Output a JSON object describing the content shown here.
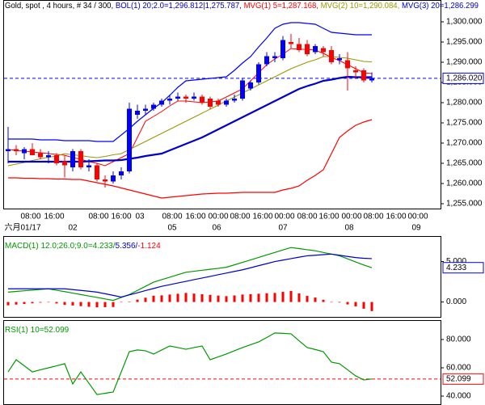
{
  "chart_data": [
    {
      "type": "candlestick",
      "title": "Gold, spot , 4 hours, # 34 / 300,",
      "up_color": "#0000ff",
      "down_color": "#ff0000",
      "open": [
        1268,
        1268.5,
        1267.5,
        1268.5,
        1267.5,
        1266.5,
        1267,
        1265.5,
        1264,
        1268,
        1264,
        1264.5,
        1261,
        1260.5,
        1262,
        1263,
        1277,
        1278,
        1278.5,
        1279.5,
        1280.5,
        1281,
        1281.5,
        1281,
        1281.5,
        1281,
        1280.5,
        1279.5,
        1280.5,
        1281,
        1283.5,
        1285,
        1289.5,
        1291,
        1291,
        1295,
        1294.5,
        1294.5,
        1292.5,
        1293.5,
        1293,
        1290.5,
        1290.5,
        1288,
        1288,
        1285.5
      ],
      "high": [
        1274,
        1269.5,
        1269,
        1270,
        1268.5,
        1268,
        1267.5,
        1267,
        1268.5,
        1268.5,
        1266,
        1265,
        1262,
        1263,
        1264,
        1280,
        1279.5,
        1279.5,
        1280,
        1281,
        1282,
        1282.5,
        1282,
        1282.5,
        1282,
        1281.5,
        1281,
        1281,
        1282,
        1286,
        1285.5,
        1290,
        1292.5,
        1292.5,
        1296.5,
        1297,
        1296,
        1295.5,
        1294.5,
        1294,
        1294,
        1292,
        1292.5,
        1289,
        1288.5,
        1287.5
      ],
      "low": [
        1265,
        1267,
        1266,
        1267,
        1266,
        1265,
        1264.5,
        1261.5,
        1263,
        1263.5,
        1263,
        1260.5,
        1259,
        1260,
        1261,
        1262.5,
        1276,
        1277,
        1278,
        1279,
        1279.5,
        1280.5,
        1280,
        1280.5,
        1279.5,
        1278.5,
        1279,
        1279,
        1280,
        1280.5,
        1283,
        1284.5,
        1289,
        1290,
        1290.5,
        1293.5,
        1292.5,
        1291.5,
        1292,
        1291.5,
        1289.5,
        1289.5,
        1283,
        1286,
        1285,
        1285
      ],
      "close": [
        1268.5,
        1268,
        1268.5,
        1267,
        1266.5,
        1267,
        1265,
        1264.5,
        1268,
        1264,
        1264.5,
        1261,
        1260.5,
        1262,
        1263,
        1278.5,
        1278,
        1278.5,
        1279.5,
        1280.5,
        1281,
        1281.5,
        1281,
        1281.5,
        1280,
        1279,
        1279.5,
        1280.5,
        1281,
        1285.5,
        1285,
        1289.5,
        1291.5,
        1291.5,
        1295.5,
        1294.5,
        1293,
        1292,
        1294,
        1292.5,
        1290,
        1291,
        1288.5,
        1287.5,
        1285.5,
        1286.02
      ],
      "bands": {
        "name": "BOL(1) 20;2.0=1,296.812|1,275.787,",
        "color": "#0000cc",
        "upper_color": "#0000ff",
        "lower_color": "#ff0000",
        "upper": [
          1271,
          1271,
          1271,
          1271,
          1270.8,
          1270.8,
          1270.8,
          1270.6,
          1270.6,
          1270.6,
          1270.6,
          1270.4,
          1270.4,
          1270.4,
          1272,
          1273.6,
          1275.4,
          1277,
          1278.6,
          1280,
          1281.8,
          1283.8,
          1285.4,
          1285.6,
          1285.8,
          1286,
          1286.2,
          1286.4,
          1288,
          1289.8,
          1291.4,
          1293.8,
          1296,
          1298.4,
          1299.4,
          1299.8,
          1299.8,
          1299.6,
          1299.4,
          1298.4,
          1297.4,
          1297.2,
          1297,
          1296.8,
          1296.8,
          1296.8
        ],
        "lower": [
          1261.4,
          1261.4,
          1261.3,
          1261.3,
          1261.2,
          1261.2,
          1261.1,
          1261.1,
          1261,
          1261,
          1260.6,
          1260.2,
          1259.8,
          1259.4,
          1258.9,
          1258.4,
          1257.9,
          1257.4,
          1256.9,
          1256.4,
          1256.6,
          1256.8,
          1257,
          1257.2,
          1257.4,
          1257.5,
          1257.6,
          1257.6,
          1257.7,
          1257.8,
          1257.8,
          1257.8,
          1257.8,
          1257.8,
          1258.4,
          1258.8,
          1259.4,
          1260.8,
          1262,
          1263.4,
          1267.4,
          1271.4,
          1273,
          1274.4,
          1275.2,
          1275.8
        ]
      },
      "series": [
        {
          "name": "MVG(1) 5=1,287.168,",
          "color": "#ff0000",
          "width": 1,
          "values": [
            1268.4,
            1268.2,
            1268,
            1267.8,
            1267.6,
            1267.4,
            1267.2,
            1267,
            1266.4,
            1266,
            1265.4,
            1265,
            1264.4,
            1265.4,
            1266.4,
            1267.4,
            1271.4,
            1275.4,
            1276.6,
            1277.8,
            1279.2,
            1280.4,
            1280.4,
            1280.2,
            1280,
            1280.2,
            1280.4,
            1281.4,
            1282.4,
            1283.4,
            1285.4,
            1287.4,
            1289.4,
            1290.8,
            1292,
            1293.4,
            1293.2,
            1293.2,
            1293,
            1292.2,
            1291.2,
            1290.4,
            1289.4,
            1288.4,
            1287.4,
            1287.2
          ]
        },
        {
          "name": "MVG(2) 10=1,290.084,",
          "color": "#999900",
          "width": 1,
          "values": [
            1264.4,
            1264.8,
            1265.2,
            1265.7,
            1266.1,
            1266.5,
            1266.8,
            1267.4,
            1267.1,
            1266.9,
            1266.6,
            1266.4,
            1266.7,
            1267.1,
            1267.4,
            1268.4,
            1269.4,
            1270.4,
            1271.4,
            1272.4,
            1273.4,
            1274.4,
            1275.4,
            1276.4,
            1277.4,
            1278.4,
            1279.4,
            1280.4,
            1281.4,
            1282.4,
            1283.4,
            1284.4,
            1285.4,
            1286.4,
            1287.4,
            1288.4,
            1289.2,
            1290,
            1290.6,
            1291.4,
            1291.4,
            1291.2,
            1291,
            1290.6,
            1290.2,
            1290.1
          ]
        },
        {
          "name": "MVG(3) 20=1,286.299",
          "color": "#0000cc",
          "width": 2.2,
          "values": [
            1265.4,
            1265.4,
            1265.4,
            1265.4,
            1265.4,
            1265.4,
            1265.4,
            1265.4,
            1265.4,
            1265.4,
            1265.5,
            1265.6,
            1265.7,
            1265.7,
            1265.8,
            1266.1,
            1266.4,
            1266.8,
            1267.1,
            1267.4,
            1268.2,
            1269,
            1269.8,
            1270.6,
            1271.4,
            1272.4,
            1273.4,
            1274.4,
            1275.4,
            1276.4,
            1277.4,
            1278.4,
            1279.4,
            1280.4,
            1281.4,
            1282.4,
            1283.4,
            1284.1,
            1284.7,
            1285.4,
            1285.7,
            1286.1,
            1286.4,
            1286.3,
            1286.3,
            1286.3
          ]
        }
      ],
      "ylim": [
        1253.8,
        1302.8
      ],
      "yticks": [
        {
          "value": 1255,
          "label": "1,255.000"
        },
        {
          "value": 1260,
          "label": "1,260.000"
        },
        {
          "value": 1265,
          "label": "1,265.000"
        },
        {
          "value": 1270,
          "label": "1,270.000"
        },
        {
          "value": 1275,
          "label": "1,275.000"
        },
        {
          "value": 1280,
          "label": "1,280.000"
        },
        {
          "value": 1285,
          "label": "1,285.000"
        },
        {
          "value": 1290,
          "label": "1,290.000"
        },
        {
          "value": 1295,
          "label": "1,295.000"
        },
        {
          "value": 1300,
          "label": "1,300.000"
        }
      ],
      "last": {
        "value": 1286.02,
        "label": "1,286.020",
        "color": "#0000ff",
        "dashed": true
      },
      "time_labels": [
        "08:00",
        "16:00",
        "08:00",
        "16:00",
        "03",
        "08:00",
        "16:00",
        "00:00",
        "08:00",
        "16:00",
        "00:00",
        "08:00",
        "16:00",
        "00:00",
        "08:00",
        "16:00",
        "00:00"
      ],
      "date_labels": [
        "六月01/17",
        "02",
        "05",
        "06",
        "07",
        "08",
        "09"
      ]
    },
    {
      "type": "macd",
      "hist_color": "#ff0000",
      "series": [
        {
          "name": "MACD(1) 12.0;26.0;9.0=4.233/",
          "color": "#009900",
          "values": [
            1.22,
            1.31,
            1.39,
            1.47,
            1.55,
            1.63,
            1.45,
            1.28,
            1.1,
            0.92,
            0.74,
            0.56,
            0.38,
            0.2,
            0.56,
            0.92,
            1.43,
            1.94,
            2.45,
            2.76,
            3.06,
            3.37,
            3.67,
            3.8,
            3.92,
            4.04,
            4.16,
            4.29,
            4.59,
            4.9,
            5.2,
            5.51,
            5.82,
            6.12,
            6.43,
            6.73,
            6.6,
            6.46,
            6.33,
            6.12,
            5.92,
            5.71,
            5.33,
            4.95,
            4.57,
            4.233
          ]
        },
        {
          "name": "5.356/",
          "color": "#0000cc",
          "values": [
            1.63,
            1.63,
            1.63,
            1.63,
            1.63,
            1.63,
            1.63,
            1.63,
            1.53,
            1.43,
            1.33,
            1.22,
            1.02,
            0.82,
            0.61,
            0.88,
            1.14,
            1.41,
            1.67,
            1.94,
            2.14,
            2.35,
            2.55,
            2.76,
            2.96,
            3.16,
            3.37,
            3.57,
            3.78,
            3.98,
            4.23,
            4.49,
            4.74,
            5,
            5.18,
            5.36,
            5.54,
            5.71,
            5.78,
            5.85,
            5.92,
            5.78,
            5.63,
            5.49,
            5.4,
            5.356
          ]
        }
      ],
      "histogram": {
        "name": "-1.124",
        "values": [
          -0.41,
          -0.32,
          -0.24,
          -0.16,
          -0.08,
          0,
          -0.18,
          -0.35,
          -0.43,
          -0.51,
          -0.59,
          -0.66,
          -0.64,
          -0.62,
          -0.05,
          0.04,
          0.29,
          0.53,
          0.78,
          0.82,
          0.92,
          1.02,
          1.12,
          1.04,
          0.96,
          0.88,
          0.79,
          0.72,
          0.81,
          0.92,
          0.97,
          1.02,
          1.08,
          1.12,
          1.25,
          1.37,
          1.06,
          0.75,
          0.55,
          0.27,
          0,
          -0.07,
          -0.3,
          -0.54,
          -0.83,
          -1.124
        ]
      },
      "ylim": [
        -1.84,
        7.55
      ],
      "yticks": [
        {
          "value": 0,
          "label": "0.000"
        },
        {
          "value": 5,
          "label": "5.000"
        }
      ],
      "last": {
        "value": 4.233,
        "label": "4.233",
        "color": "#0000ff",
        "dashed": false
      }
    },
    {
      "type": "line",
      "series": [
        {
          "name": "RSI(1) 10=52.099",
          "color": "#009900",
          "values": [
            57.1,
            65.7,
            61.4,
            57.1,
            58.6,
            60,
            61.4,
            62.9,
            48.6,
            57.1,
            49.1,
            41.1,
            42,
            42.9,
            57.1,
            71.4,
            72.6,
            72,
            69.7,
            72.6,
            75.4,
            74.3,
            73.1,
            74.3,
            75.4,
            65.7,
            67.7,
            69.7,
            72,
            74.3,
            76.3,
            78.3,
            81.4,
            84.6,
            84.3,
            84,
            79.1,
            74.3,
            72.9,
            71.4,
            64,
            62.9,
            58.6,
            54.3,
            51.4,
            52.099
          ]
        }
      ],
      "ylim": [
        34.3,
        93.1
      ],
      "yticks": [
        {
          "value": 40,
          "label": "40.000"
        },
        {
          "value": 60,
          "label": "60.000"
        },
        {
          "value": 80,
          "label": "80.000"
        }
      ],
      "last": {
        "value": 52.099,
        "label": "52.099",
        "color": "#ff0000",
        "dashed": true
      }
    }
  ]
}
